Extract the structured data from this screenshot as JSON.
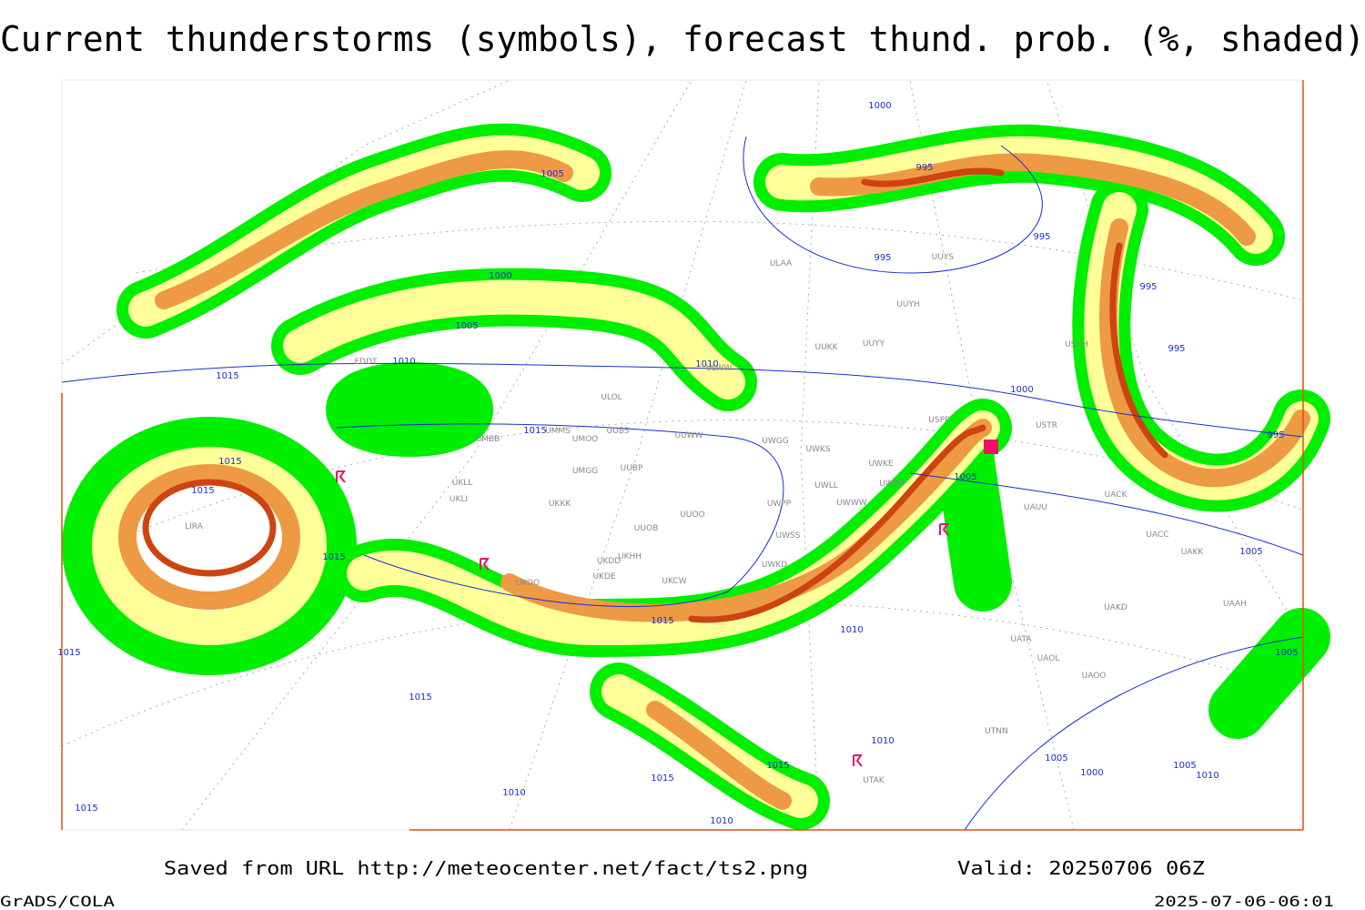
{
  "header": {
    "title": "Current thunderstorms (symbols), forecast thund. prob. (%, shaded)"
  },
  "footer": {
    "source": "Saved from URL http://meteocenter.net/fact/ts2.png",
    "valid": "Valid: 20250706 06Z",
    "software": "GrADS/COLA",
    "timestamp": "2025-07-06-06:01"
  },
  "map": {
    "isobar_labels": [
      "1005",
      "1000",
      "1005",
      "1010",
      "1015",
      "1015",
      "1015",
      "1015",
      "1015",
      "1015",
      "1010",
      "1000",
      "995",
      "995",
      "995",
      "1010",
      "1000",
      "1005",
      "995",
      "995",
      "995",
      "1005",
      "1005",
      "1010",
      "1015",
      "1015",
      "1010",
      "1015",
      "1015",
      "1010",
      "1005",
      "1005",
      "1010",
      "1000",
      "1015"
    ],
    "stations": [
      "ULOL",
      "UMMS",
      "UMOO",
      "UUBS",
      "UUWW",
      "UMBB",
      "UMGG",
      "UUBP",
      "UKLL",
      "UKLI",
      "UKKK",
      "UUOO",
      "UUOB",
      "UKHH",
      "UKDD",
      "UKDE",
      "UKCW",
      "UKOO",
      "UWGG",
      "UWKS",
      "UWKE",
      "UWKB",
      "UWLL",
      "UWWW",
      "UWPP",
      "UWSS",
      "UWKD",
      "ULAA",
      "UUYS",
      "UUYH",
      "UUKK",
      "UUYY",
      "USHH",
      "USTR",
      "UACK",
      "UAUU",
      "UACC",
      "UAKK",
      "UAKD",
      "UAAH",
      "UATA",
      "UAOL",
      "UAOO",
      "UTNN",
      "UTAK",
      "EDDT",
      "ULWW",
      "USPP",
      "LIRA"
    ]
  }
}
